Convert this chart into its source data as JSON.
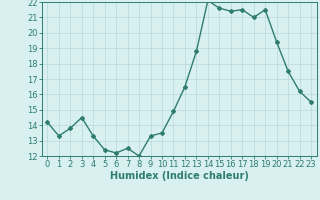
{
  "x": [
    0,
    1,
    2,
    3,
    4,
    5,
    6,
    7,
    8,
    9,
    10,
    11,
    12,
    13,
    14,
    15,
    16,
    17,
    18,
    19,
    20,
    21,
    22,
    23
  ],
  "y": [
    14.2,
    13.3,
    13.8,
    14.5,
    13.3,
    12.4,
    12.2,
    12.5,
    12.0,
    13.3,
    13.5,
    14.9,
    16.5,
    18.8,
    22.1,
    21.6,
    21.4,
    21.5,
    21.0,
    21.5,
    19.4,
    17.5,
    16.2,
    15.5
  ],
  "xlabel": "Humidex (Indice chaleur)",
  "ylabel": "",
  "xlim": [
    -0.5,
    23.5
  ],
  "ylim": [
    12,
    22
  ],
  "yticks": [
    12,
    13,
    14,
    15,
    16,
    17,
    18,
    19,
    20,
    21,
    22
  ],
  "xticks": [
    0,
    1,
    2,
    3,
    4,
    5,
    6,
    7,
    8,
    9,
    10,
    11,
    12,
    13,
    14,
    15,
    16,
    17,
    18,
    19,
    20,
    21,
    22,
    23
  ],
  "line_color": "#2e7d6e",
  "marker": "D",
  "marker_size": 2.0,
  "line_width": 1.0,
  "bg_color": "#d9f0f0",
  "grid_color": "#b8d8d8",
  "axes_color": "#2e7d6e",
  "tick_color": "#2e7d6e",
  "label_fontsize": 6,
  "xlabel_fontsize": 7,
  "title_visible": false
}
